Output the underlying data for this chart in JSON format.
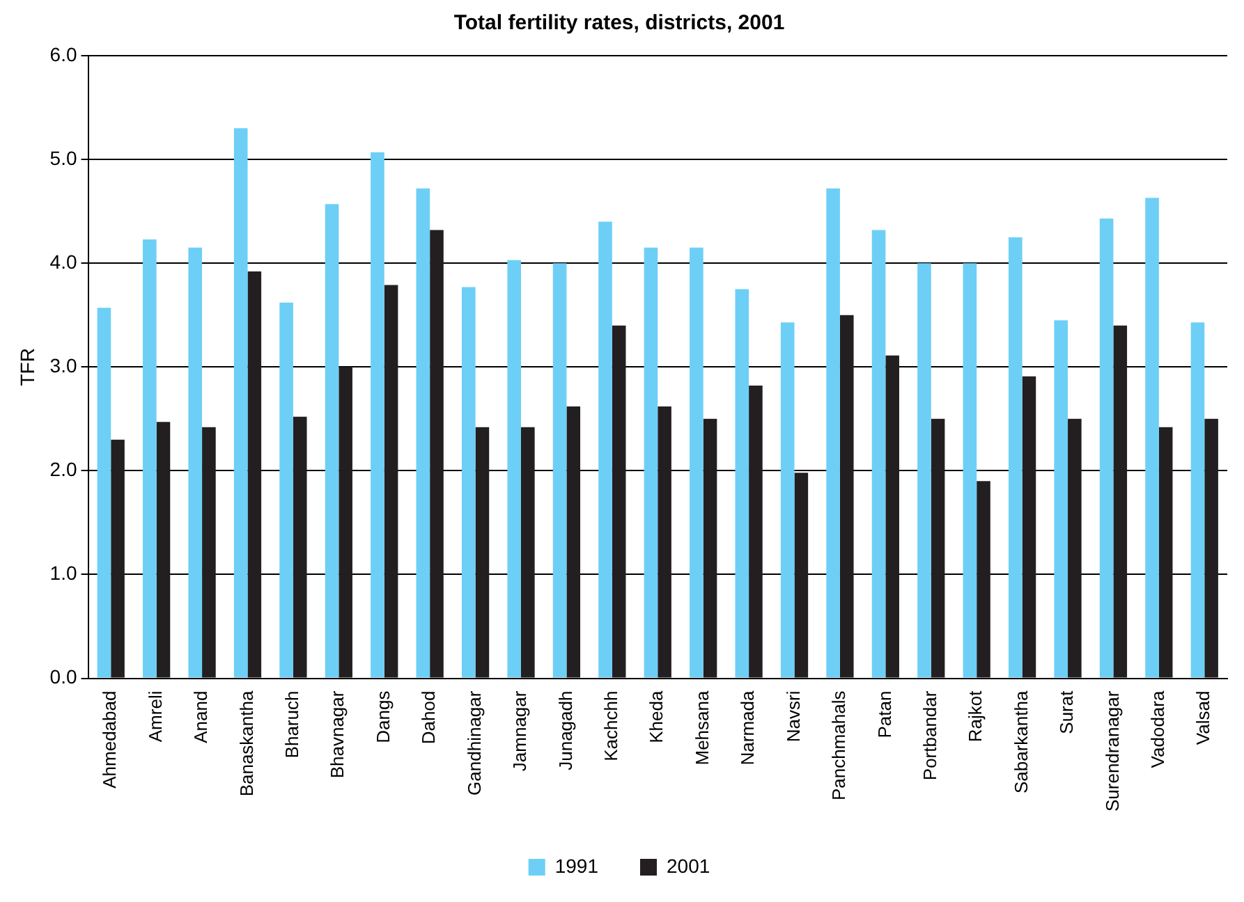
{
  "chart_data": {
    "type": "bar",
    "title": "Total fertility rates, districts, 2001",
    "ylabel": "TFR",
    "categories": [
      "Ahmedabad",
      "Amreli",
      "Anand",
      "Banaskantha",
      "Bharuch",
      "Bhavnagar",
      "Dangs",
      "Dahod",
      "Gandhinagar",
      "Jamnagar",
      "Junagadh",
      "Kachchh",
      "Kheda",
      "Mehsana",
      "Narmada",
      "Navsri",
      "Panchmahals",
      "Patan",
      "Portbandar",
      "Rajkot",
      "Sabarkantha",
      "Surat",
      "Surendranagar",
      "Vadodara",
      "Valsad"
    ],
    "series": [
      {
        "name": "1991",
        "color": "#6dcff6",
        "values": [
          3.57,
          4.23,
          4.15,
          5.3,
          3.62,
          4.57,
          5.07,
          4.72,
          3.77,
          4.03,
          4.0,
          4.4,
          4.15,
          4.15,
          3.75,
          3.43,
          4.72,
          4.32,
          4.0,
          4.0,
          4.25,
          3.45,
          4.43,
          4.63,
          3.43
        ]
      },
      {
        "name": "2001",
        "color": "#231f20",
        "values": [
          2.3,
          2.47,
          2.42,
          3.92,
          2.52,
          3.0,
          3.79,
          4.32,
          2.42,
          2.42,
          2.62,
          3.4,
          2.62,
          2.5,
          2.82,
          1.98,
          3.5,
          3.11,
          2.5,
          1.9,
          2.91,
          2.5,
          3.4,
          2.42,
          2.5
        ]
      }
    ],
    "ylim": [
      0,
      6
    ],
    "yticks": [
      {
        "value": 0,
        "label": "0.0"
      },
      {
        "value": 1,
        "label": "1.0"
      },
      {
        "value": 2,
        "label": "2.0"
      },
      {
        "value": 3,
        "label": "3.0"
      },
      {
        "value": 4,
        "label": "4.0"
      },
      {
        "value": 5,
        "label": "5.0"
      },
      {
        "value": 6,
        "label": "6.0"
      }
    ],
    "grid": "y",
    "legend": "bottom"
  }
}
